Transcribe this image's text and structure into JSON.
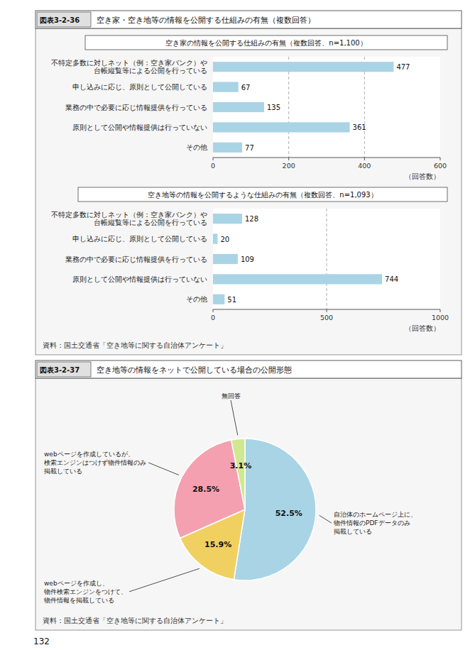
{
  "chart_data": [
    {
      "type": "bar",
      "orientation": "horizontal",
      "title": "空き家の情報を公開する仕組みの有無（複数回答、n=1,100）",
      "annotations": [
        "図表3-2-36",
        "空き家・空き地等の情報を公開する仕組みの有無（複数回答）"
      ],
      "categories": [
        "不特定多数に対しネット（例：空き家バンク）や\n台帳縦覧等による公開を行っている",
        "申し込みに応じ、原則として公開している",
        "業務の中で必要に応じ情報提供を行っている",
        "原則として公開や情報提供は行っていない",
        "その他"
      ],
      "values": [
        477,
        67,
        135,
        361,
        77
      ],
      "color": "#a8d4e6",
      "xlim": [
        0,
        600
      ],
      "xticks": [
        0,
        200,
        400,
        600
      ],
      "xlabel": "（回答数）",
      "grid": true,
      "data_labels": true
    },
    {
      "type": "bar",
      "orientation": "horizontal",
      "title": "空き地等の情報を公開するような仕組みの有無（複数回答、n=1,093）",
      "annotations": [
        "資料：国土交通省「空き地等に関する自治体アンケート」"
      ],
      "categories": [
        "不特定多数に対しネット（例：空き家バンク）や\n台帳縦覧等による公開を行っている",
        "申し込みに応じ、原則として公開している",
        "業務の中で必要に応じ情報提供を行っている",
        "原則として公開や情報提供は行っていない",
        "その他"
      ],
      "values": [
        128,
        20,
        109,
        744,
        51
      ],
      "color": "#a8d4e6",
      "xlim": [
        0,
        1000
      ],
      "xticks": [
        0,
        500,
        1000
      ],
      "xlabel": "（回答数）",
      "grid": true,
      "data_labels": true
    },
    {
      "type": "pie",
      "annotations": [
        "図表3-2-37",
        "空き地等の情報をネットで公開している場合の公開形態",
        "資料：国土交通省「空き地等に関する自治体アンケート」",
        "132"
      ],
      "categories": [
        "自治体のホームページ上に、\n物件情報のPDFデータのみ\n掲載している",
        "webページを作成し、\n物件検索エンジンをつけて、\n物件情報を掲載している",
        "webページを作成しているが、\n検索エンジンはつけず物件情報のみ\n掲載している",
        "無回答"
      ],
      "values": [
        52.5,
        15.9,
        28.5,
        3.1
      ],
      "value_labels": [
        "52.5%",
        "15.9%",
        "28.5%",
        "3.1%"
      ],
      "colors": [
        "#a8d4e6",
        "#f0d060",
        "#f4a0b0",
        "#d0e890"
      ],
      "data_labels": true
    }
  ]
}
